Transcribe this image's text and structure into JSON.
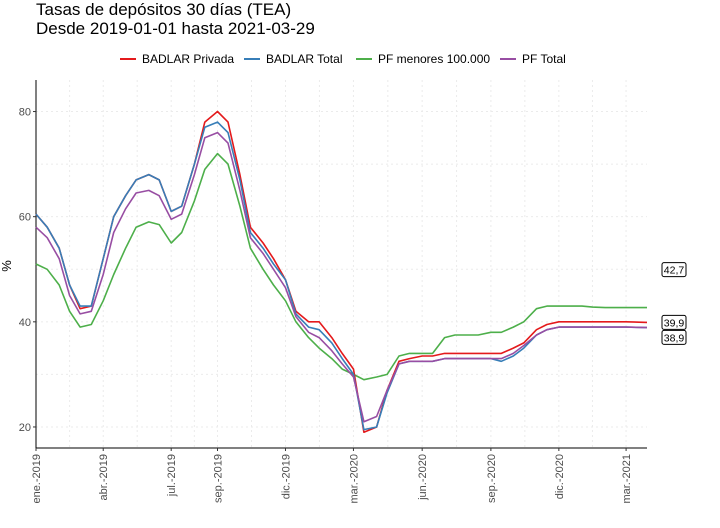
{
  "chart_data": {
    "type": "line",
    "title": "Tasas de depósitos 30 días (TEA)",
    "subtitle": "Desde 2019-01-01 hasta 2021-03-29",
    "xlabel": "",
    "ylabel": "%",
    "xlim": [
      "2019-01-01",
      "2021-03-29"
    ],
    "ylim": [
      16,
      86
    ],
    "y_ticks": [
      20,
      40,
      60,
      80
    ],
    "x_ticks": [
      {
        "date": "2019-01-01",
        "label": "ene.-2019"
      },
      {
        "date": "2019-04-01",
        "label": "abr.-2019"
      },
      {
        "date": "2019-07-01",
        "label": "jul.-2019"
      },
      {
        "date": "2019-09-01",
        "label": "sep.-2019"
      },
      {
        "date": "2019-12-01",
        "label": "dic.-2019"
      },
      {
        "date": "2020-03-01",
        "label": "mar.-2020"
      },
      {
        "date": "2020-06-01",
        "label": "jun.-2020"
      },
      {
        "date": "2020-09-01",
        "label": "sep.-2020"
      },
      {
        "date": "2020-12-01",
        "label": "dic.-2020"
      },
      {
        "date": "2021-03-01",
        "label": "mar.-2021"
      }
    ],
    "grid": true,
    "legend_position": "top",
    "series": [
      {
        "name": "BADLAR Privada",
        "color": "#e41a1c",
        "x": [
          "2019-01-01",
          "2019-01-16",
          "2019-02-01",
          "2019-02-15",
          "2019-03-01",
          "2019-03-16",
          "2019-04-01",
          "2019-04-15",
          "2019-05-01",
          "2019-05-15",
          "2019-06-01",
          "2019-06-15",
          "2019-07-01",
          "2019-07-15",
          "2019-08-01",
          "2019-08-15",
          "2019-09-01",
          "2019-09-15",
          "2019-10-01",
          "2019-10-15",
          "2019-11-01",
          "2019-11-15",
          "2019-12-01",
          "2019-12-15",
          "2020-01-01",
          "2020-01-15",
          "2020-02-01",
          "2020-02-15",
          "2020-03-01",
          "2020-03-15",
          "2020-04-01",
          "2020-04-15",
          "2020-05-01",
          "2020-05-15",
          "2020-06-01",
          "2020-06-15",
          "2020-07-01",
          "2020-07-15",
          "2020-08-01",
          "2020-08-15",
          "2020-09-01",
          "2020-09-15",
          "2020-10-01",
          "2020-10-15",
          "2020-11-01",
          "2020-11-15",
          "2020-12-01",
          "2020-12-15",
          "2021-01-01",
          "2021-01-15",
          "2021-02-01",
          "2021-02-15",
          "2021-03-01",
          "2021-03-29"
        ],
        "values": [
          60.5,
          58,
          54,
          47,
          42.5,
          43,
          52,
          60,
          64,
          67,
          68,
          67,
          61,
          62,
          70,
          78,
          80,
          78,
          68,
          58,
          55,
          52,
          48,
          42,
          40,
          40,
          37,
          34,
          31,
          19,
          20,
          27,
          32.5,
          33,
          33.5,
          33.5,
          34,
          34,
          34,
          34,
          34,
          34,
          35,
          36,
          38.5,
          39.5,
          40,
          40,
          40,
          40,
          40,
          40,
          40,
          39.9
        ]
      },
      {
        "name": "BADLAR Total",
        "color": "#377eb8",
        "x": [
          "2019-01-01",
          "2019-01-16",
          "2019-02-01",
          "2019-02-15",
          "2019-03-01",
          "2019-03-16",
          "2019-04-01",
          "2019-04-15",
          "2019-05-01",
          "2019-05-15",
          "2019-06-01",
          "2019-06-15",
          "2019-07-01",
          "2019-07-15",
          "2019-08-01",
          "2019-08-15",
          "2019-09-01",
          "2019-09-15",
          "2019-10-01",
          "2019-10-15",
          "2019-11-01",
          "2019-11-15",
          "2019-12-01",
          "2019-12-15",
          "2020-01-01",
          "2020-01-15",
          "2020-02-01",
          "2020-02-15",
          "2020-03-01",
          "2020-03-15",
          "2020-04-01",
          "2020-04-15",
          "2020-05-01",
          "2020-05-15",
          "2020-06-01",
          "2020-06-15",
          "2020-07-01",
          "2020-07-15",
          "2020-08-01",
          "2020-08-15",
          "2020-09-01",
          "2020-09-15",
          "2020-10-01",
          "2020-10-15",
          "2020-11-01",
          "2020-11-15",
          "2020-12-01",
          "2020-12-15",
          "2021-01-01",
          "2021-01-15",
          "2021-02-01",
          "2021-02-15",
          "2021-03-01",
          "2021-03-29"
        ],
        "values": [
          60.5,
          58,
          54,
          47,
          43,
          43,
          52,
          60,
          64,
          67,
          68,
          67,
          61,
          62,
          70,
          77,
          78,
          76,
          67,
          57,
          54,
          51,
          48,
          41.5,
          39,
          38.5,
          36,
          33,
          30,
          19.5,
          20,
          26.5,
          32,
          32.5,
          32.5,
          32.5,
          33,
          33,
          33,
          33,
          33,
          32.5,
          33.5,
          35,
          37.5,
          38.5,
          39,
          39,
          39,
          39,
          39,
          39,
          39,
          38.9
        ]
      },
      {
        "name": "PF menores 100.000",
        "color": "#4daf4a",
        "x": [
          "2019-01-01",
          "2019-01-16",
          "2019-02-01",
          "2019-02-15",
          "2019-03-01",
          "2019-03-16",
          "2019-04-01",
          "2019-04-15",
          "2019-05-01",
          "2019-05-15",
          "2019-06-01",
          "2019-06-15",
          "2019-07-01",
          "2019-07-15",
          "2019-08-01",
          "2019-08-15",
          "2019-09-01",
          "2019-09-15",
          "2019-10-01",
          "2019-10-15",
          "2019-11-01",
          "2019-11-15",
          "2019-12-01",
          "2019-12-15",
          "2020-01-01",
          "2020-01-15",
          "2020-02-01",
          "2020-02-15",
          "2020-03-01",
          "2020-03-15",
          "2020-04-01",
          "2020-04-15",
          "2020-05-01",
          "2020-05-15",
          "2020-06-01",
          "2020-06-15",
          "2020-07-01",
          "2020-07-15",
          "2020-08-01",
          "2020-08-15",
          "2020-09-01",
          "2020-09-15",
          "2020-10-01",
          "2020-10-15",
          "2020-11-01",
          "2020-11-15",
          "2020-12-01",
          "2020-12-15",
          "2021-01-01",
          "2021-01-15",
          "2021-02-01",
          "2021-02-15",
          "2021-03-01",
          "2021-03-29"
        ],
        "values": [
          51,
          50,
          47,
          42,
          39,
          39.5,
          44,
          49,
          54,
          58,
          59,
          58.5,
          55,
          57,
          63,
          69,
          72,
          70,
          62,
          54,
          50,
          47,
          44,
          40,
          37,
          35,
          33,
          31,
          30,
          29,
          29.5,
          30,
          33.5,
          34,
          34,
          34,
          37,
          37.5,
          37.5,
          37.5,
          38,
          38,
          39,
          40,
          42.5,
          43,
          43,
          43,
          43,
          42.8,
          42.7,
          42.7,
          42.7,
          42.7
        ]
      },
      {
        "name": "PF Total",
        "color": "#984ea3",
        "x": [
          "2019-01-01",
          "2019-01-16",
          "2019-02-01",
          "2019-02-15",
          "2019-03-01",
          "2019-03-16",
          "2019-04-01",
          "2019-04-15",
          "2019-05-01",
          "2019-05-15",
          "2019-06-01",
          "2019-06-15",
          "2019-07-01",
          "2019-07-15",
          "2019-08-01",
          "2019-08-15",
          "2019-09-01",
          "2019-09-15",
          "2019-10-01",
          "2019-10-15",
          "2019-11-01",
          "2019-11-15",
          "2019-12-01",
          "2019-12-15",
          "2020-01-01",
          "2020-01-15",
          "2020-02-01",
          "2020-02-15",
          "2020-03-01",
          "2020-03-15",
          "2020-04-01",
          "2020-04-15",
          "2020-05-01",
          "2020-05-15",
          "2020-06-01",
          "2020-06-15",
          "2020-07-01",
          "2020-07-15",
          "2020-08-01",
          "2020-08-15",
          "2020-09-01",
          "2020-09-15",
          "2020-10-01",
          "2020-10-15",
          "2020-11-01",
          "2020-11-15",
          "2020-12-01",
          "2020-12-15",
          "2021-01-01",
          "2021-01-15",
          "2021-02-01",
          "2021-02-15",
          "2021-03-01",
          "2021-03-29"
        ],
        "values": [
          58,
          56,
          52,
          45,
          41.5,
          42,
          49,
          57,
          61.5,
          64.5,
          65,
          64,
          59.5,
          60.5,
          68,
          75,
          76,
          74,
          65,
          56,
          53,
          50,
          46.5,
          41,
          38,
          37,
          34.5,
          32,
          29.5,
          21,
          22,
          27,
          32,
          32.5,
          32.5,
          32.5,
          33,
          33,
          33,
          33,
          33,
          33,
          34,
          35.5,
          37.5,
          38.5,
          39,
          39,
          39,
          39,
          39,
          39,
          39,
          38.9
        ]
      }
    ],
    "end_labels": [
      {
        "series": "PF menores 100.000",
        "value": 42.7,
        "text": "42,7"
      },
      {
        "series": "BADLAR Privada",
        "value": 39.9,
        "text": "39,9"
      },
      {
        "series": "PF Total",
        "value": 38.9,
        "text": "38,9"
      }
    ]
  }
}
